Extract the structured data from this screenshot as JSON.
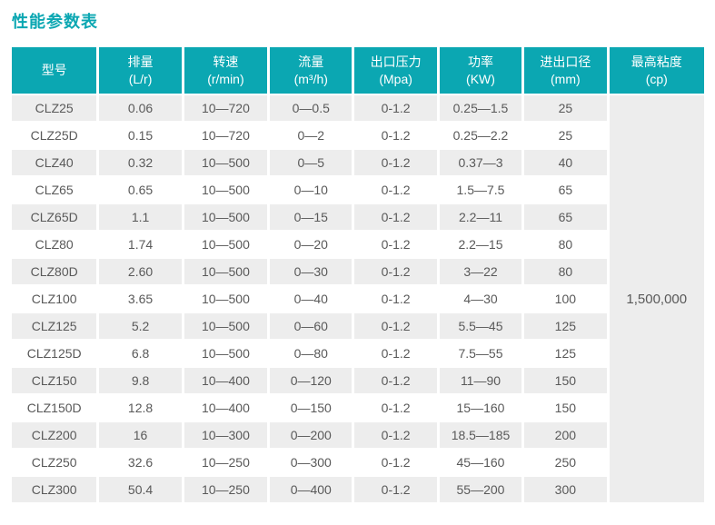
{
  "title": "性能参数表",
  "colors": {
    "accent_teal": "#0ba7b2",
    "stripe_gray": "#ededed",
    "cell_text": "#595959",
    "header_text": "#ffffff"
  },
  "table": {
    "headers": [
      {
        "line1": "型号",
        "line2": ""
      },
      {
        "line1": "排量",
        "line2": "(L/r)"
      },
      {
        "line1": "转速",
        "line2": "(r/min)"
      },
      {
        "line1": "流量",
        "line2": "(m³/h)"
      },
      {
        "line1": "出口压力",
        "line2": "(Mpa)"
      },
      {
        "line1": "功率",
        "line2": "(KW)"
      },
      {
        "line1": "进出口径",
        "line2": "(mm)"
      },
      {
        "line1": "最高粘度",
        "line2": "(cp)"
      }
    ],
    "max_viscosity": "1,500,000",
    "rows": [
      [
        "CLZ25",
        "0.06",
        "10—720",
        "0—0.5",
        "0-1.2",
        "0.25—1.5",
        "25"
      ],
      [
        "CLZ25D",
        "0.15",
        "10—720",
        "0—2",
        "0-1.2",
        "0.25—2.2",
        "25"
      ],
      [
        "CLZ40",
        "0.32",
        "10—500",
        "0—5",
        "0-1.2",
        "0.37—3",
        "40"
      ],
      [
        "CLZ65",
        "0.65",
        "10—500",
        "0—10",
        "0-1.2",
        "1.5—7.5",
        "65"
      ],
      [
        "CLZ65D",
        "1.1",
        "10—500",
        "0—15",
        "0-1.2",
        "2.2—11",
        "65"
      ],
      [
        "CLZ80",
        "1.74",
        "10—500",
        "0—20",
        "0-1.2",
        "2.2—15",
        "80"
      ],
      [
        "CLZ80D",
        "2.60",
        "10—500",
        "0—30",
        "0-1.2",
        "3—22",
        "80"
      ],
      [
        "CLZ100",
        "3.65",
        "10—500",
        "0—40",
        "0-1.2",
        "4—30",
        "100"
      ],
      [
        "CLZ125",
        "5.2",
        "10—500",
        "0—60",
        "0-1.2",
        "5.5—45",
        "125"
      ],
      [
        "CLZ125D",
        "6.8",
        "10—500",
        "0—80",
        "0-1.2",
        "7.5—55",
        "125"
      ],
      [
        "CLZ150",
        "9.8",
        "10—400",
        "0—120",
        "0-1.2",
        "11—90",
        "150"
      ],
      [
        "CLZ150D",
        "12.8",
        "10—400",
        "0—150",
        "0-1.2",
        "15—160",
        "150"
      ],
      [
        "CLZ200",
        "16",
        "10—300",
        "0—200",
        "0-1.2",
        "18.5—185",
        "200"
      ],
      [
        "CLZ250",
        "32.6",
        "10—250",
        "0—300",
        "0-1.2",
        "45—160",
        "250"
      ],
      [
        "CLZ300",
        "50.4",
        "10—250",
        "0—400",
        "0-1.2",
        "55—200",
        "300"
      ]
    ]
  }
}
